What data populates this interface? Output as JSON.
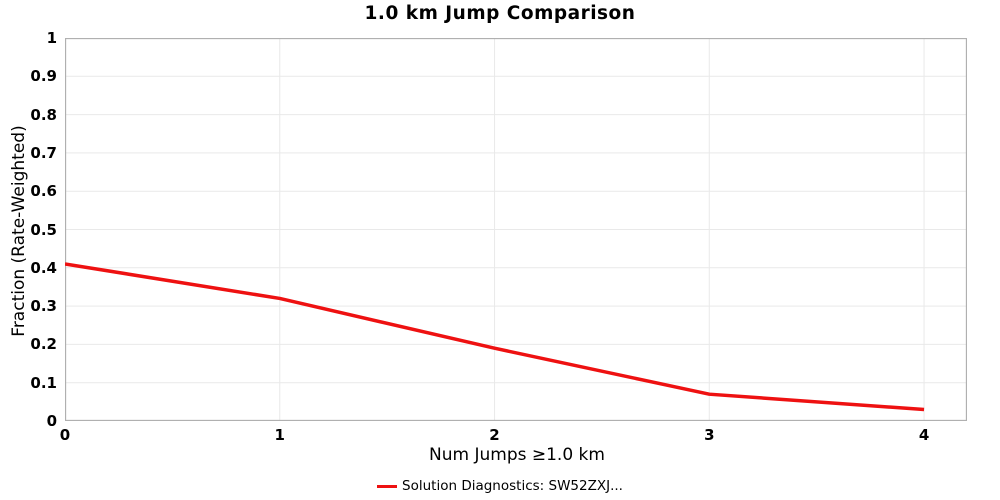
{
  "title": "1.0 km Jump Comparison",
  "legend": {
    "label": "Solution Diagnostics: SW52ZXJ..."
  },
  "chart_data": {
    "type": "line",
    "title": "1.0 km Jump Comparison",
    "xlabel": "Num Jumps ≥1.0 km",
    "ylabel": "Fraction (Rate-Weighted)",
    "x": [
      0,
      1,
      2,
      3,
      4
    ],
    "series": [
      {
        "name": "Solution Diagnostics: SW52ZXJ...",
        "color": "#ee1111",
        "values": [
          0.41,
          0.32,
          0.19,
          0.07,
          0.03
        ]
      }
    ],
    "xlim": [
      0,
      4.2
    ],
    "ylim": [
      0,
      1
    ],
    "xticks": {
      "values": [
        0,
        1,
        2,
        3,
        4
      ],
      "labels": [
        "0",
        "1",
        "2",
        "3",
        "4"
      ]
    },
    "yticks": {
      "values": [
        0,
        0.1,
        0.2,
        0.3,
        0.4,
        0.5,
        0.6,
        0.7,
        0.8,
        0.9,
        1
      ],
      "labels": [
        "0",
        "0.1",
        "0.2",
        "0.3",
        "0.4",
        "0.5",
        "0.6",
        "0.7",
        "0.8",
        "0.9",
        "1"
      ]
    },
    "grid": true,
    "legend_position": "bottom",
    "colors": {
      "border": "#b0b0b0",
      "gridline": "#e9e9e9",
      "text": "#000000"
    }
  }
}
